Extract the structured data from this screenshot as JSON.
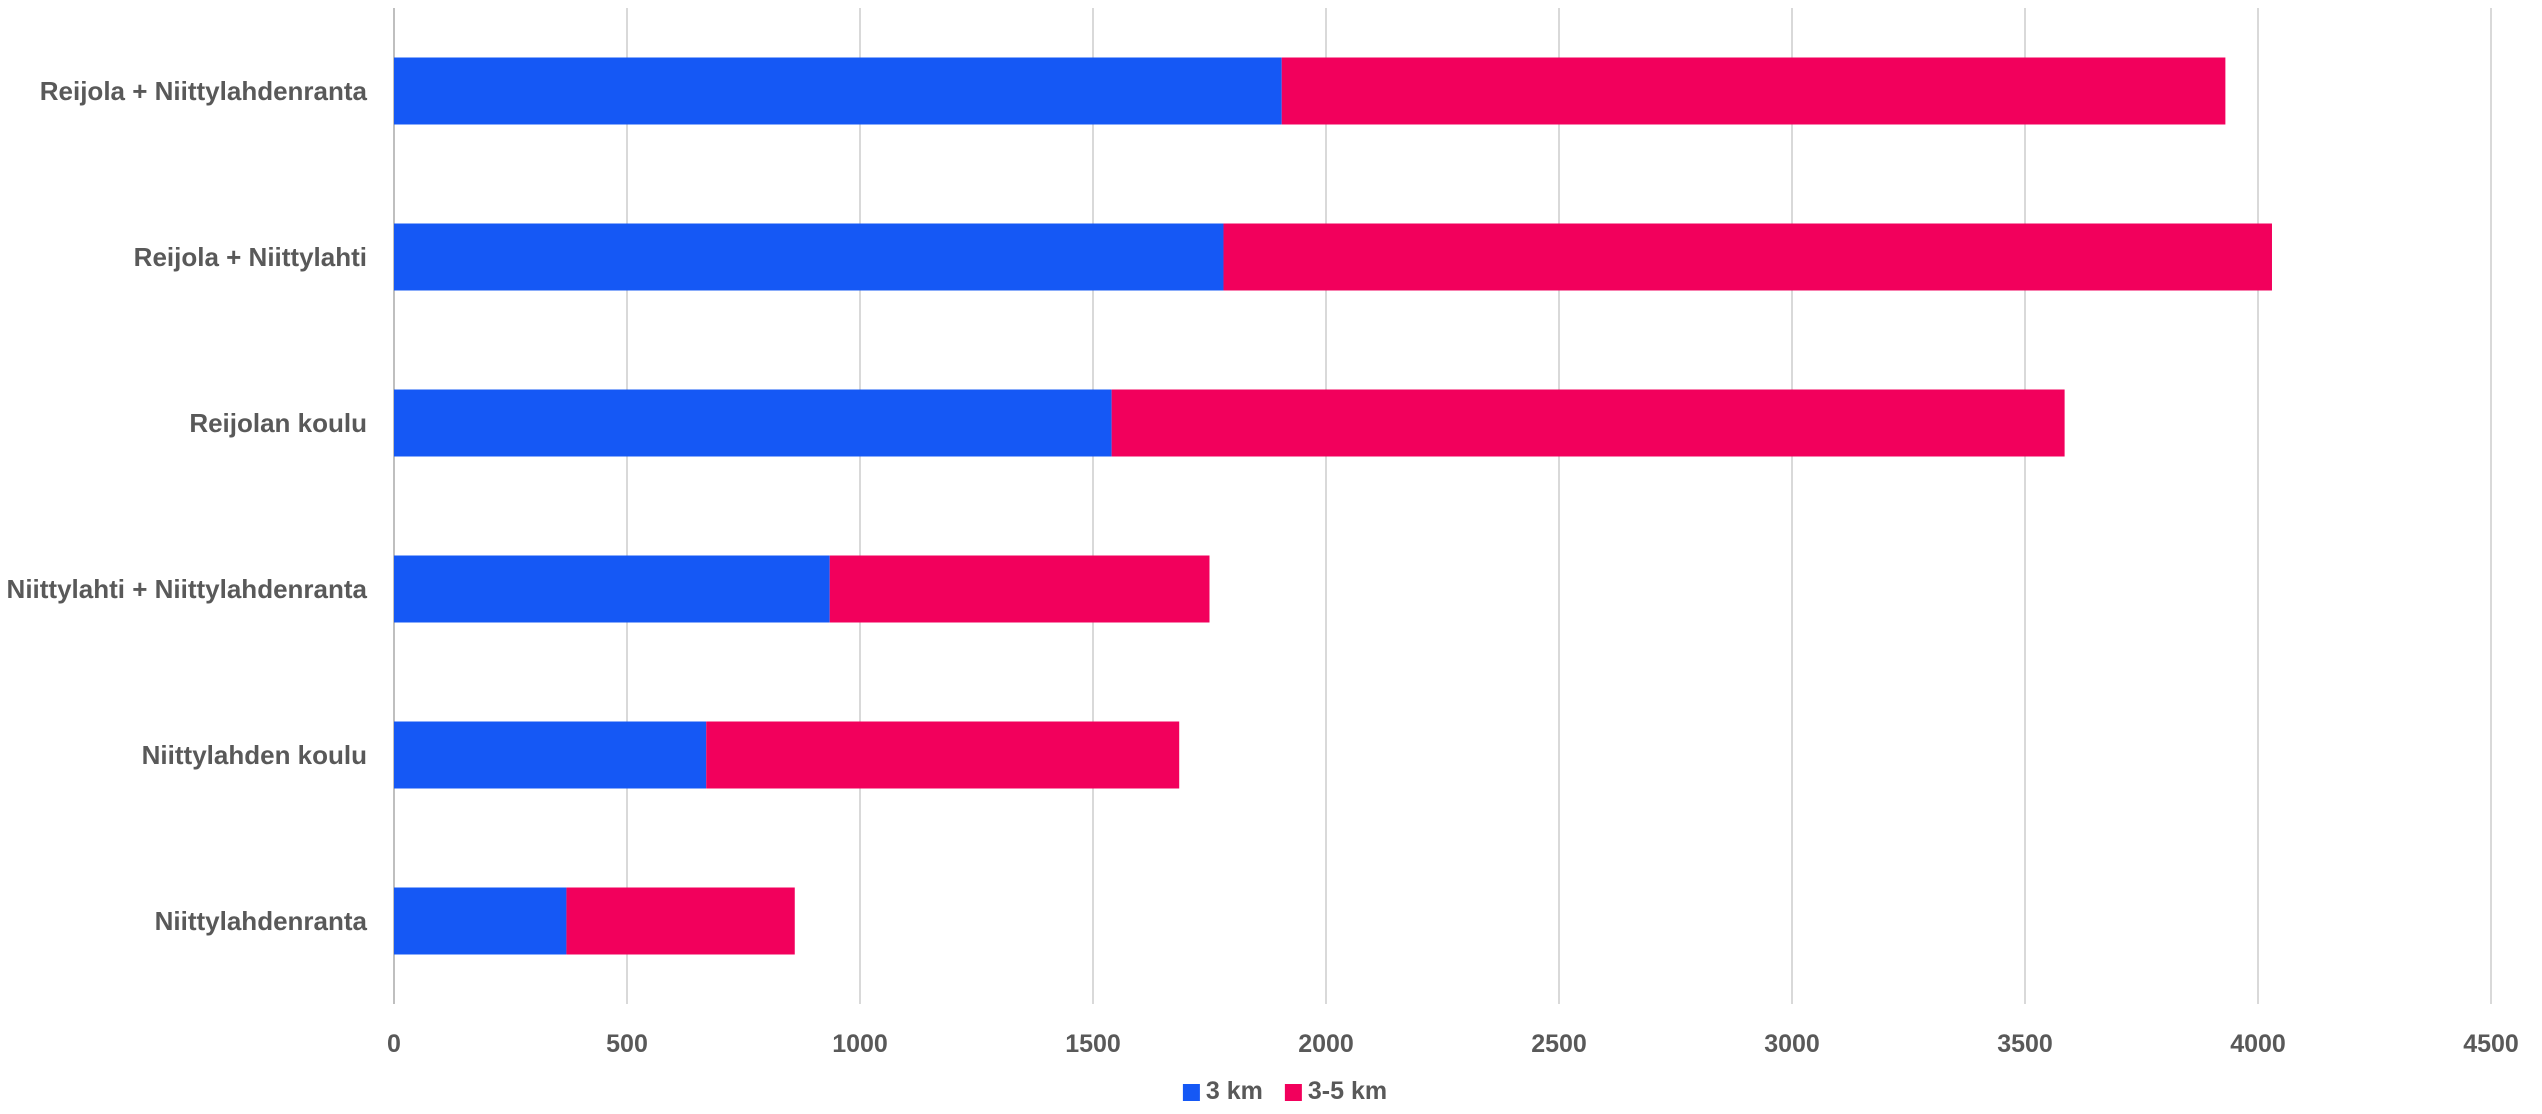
{
  "chart_data": {
    "type": "bar",
    "orientation": "horizontal",
    "stacked": true,
    "title": "",
    "xlabel": "",
    "ylabel": "",
    "categories": [
      "Reijola + Niittylahdenranta",
      "Reijola + Niittylahti",
      "Reijolan koulu",
      "Niittylahti + Niittylahdenranta",
      "Niittylahden koulu",
      "Niittylahdenranta"
    ],
    "series": [
      {
        "name": "3 km",
        "color": "#1558F5",
        "values": [
          1905,
          1780,
          1540,
          935,
          670,
          370
        ]
      },
      {
        "name": "3-5 km",
        "color": "#F2005C",
        "values": [
          2025,
          2250,
          2045,
          815,
          1015,
          490
        ]
      }
    ],
    "xlim": [
      0,
      4500
    ],
    "x_ticks": [
      "0",
      "500",
      "1000",
      "1500",
      "2000",
      "2500",
      "3000",
      "3500",
      "4000",
      "4500"
    ],
    "grid": "vertical",
    "legend_position": "bottom"
  }
}
